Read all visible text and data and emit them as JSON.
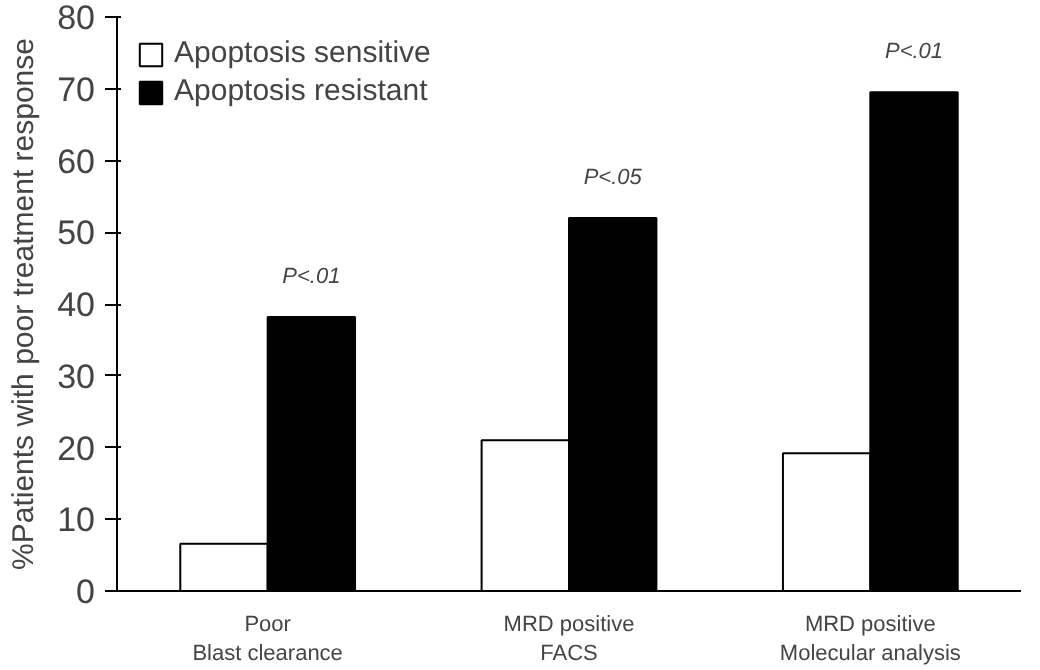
{
  "chart_data": {
    "type": "bar",
    "ylabel": "%Patients with poor treatment response",
    "categories": [
      "Poor\nBlast clearance",
      "MRD positive\nFACS",
      "MRD positive\nMolecular analysis"
    ],
    "series": [
      {
        "name": "Apoptosis sensitive",
        "color": "#ffffff",
        "values": [
          6.6,
          21.0,
          19.2
        ]
      },
      {
        "name": "Apoptosis resistant",
        "color": "#000000",
        "values": [
          38.2,
          52.0,
          69.5
        ]
      }
    ],
    "ylim": [
      0,
      80
    ],
    "yticks": [
      0,
      10,
      20,
      30,
      40,
      50,
      60,
      70,
      80
    ],
    "grid": false,
    "legend": "top left",
    "annotations": [
      "P<.01",
      "P<.05",
      "P<.01"
    ]
  }
}
